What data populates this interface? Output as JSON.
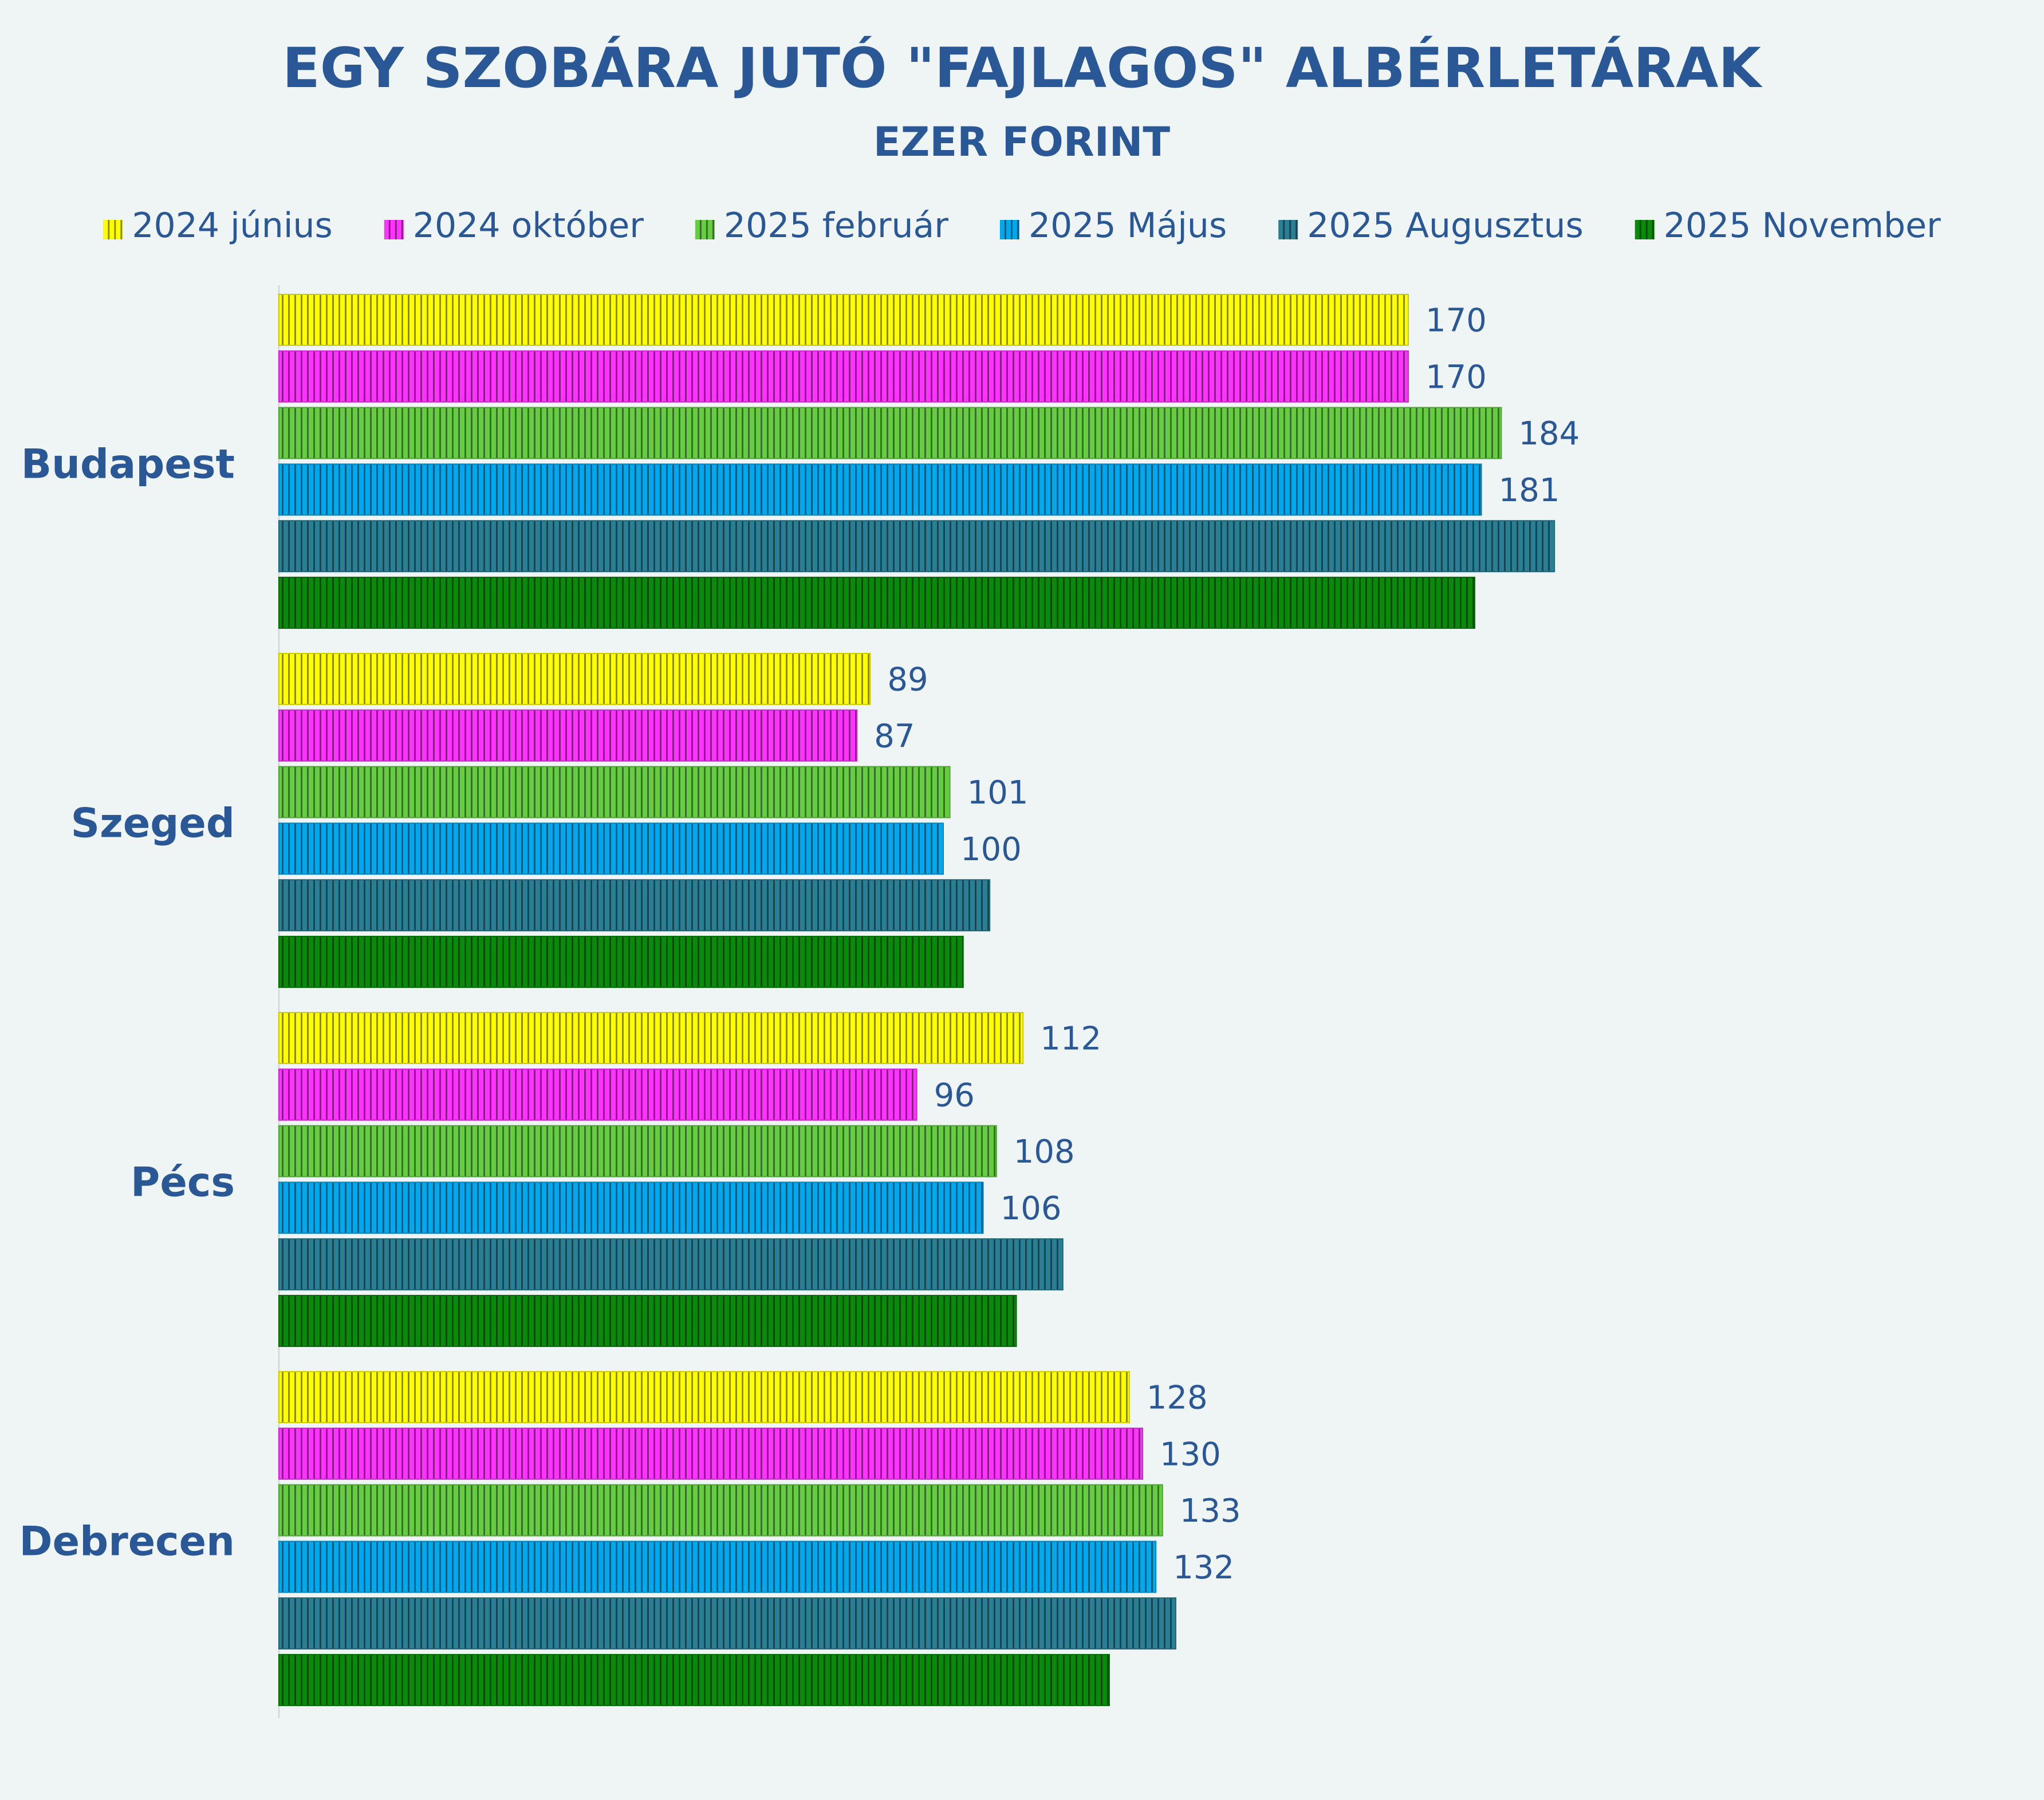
{
  "chart_data": {
    "type": "bar",
    "orientation": "horizontal",
    "title": "EGY SZOBÁRA JUTÓ \"FAJLAGOS\" ALBÉRLETÁRAK",
    "subtitle": "EZER FORINT",
    "legend_position": "top",
    "grid": false,
    "xlim": [
      0,
      240
    ],
    "categories": [
      "Budapest",
      "Szeged",
      "Pécs",
      "Debrecen"
    ],
    "series": [
      {
        "name": "2024 június",
        "color": "#ffff00",
        "values": [
          170,
          89,
          112,
          128
        ],
        "labels": [
          "170",
          "89",
          "112",
          "128"
        ]
      },
      {
        "name": "2024 október",
        "color": "#ff33ff",
        "values": [
          170,
          87,
          96,
          130
        ],
        "labels": [
          "170",
          "87",
          "96",
          "130"
        ]
      },
      {
        "name": "2025 február",
        "color": "#66cc44",
        "values": [
          184,
          101,
          108,
          133
        ],
        "labels": [
          "184",
          "101",
          "108",
          "133"
        ]
      },
      {
        "name": "2025 Május",
        "color": "#00a8ee",
        "values": [
          181,
          100,
          106,
          132
        ],
        "labels": [
          "181",
          "100",
          "106",
          "132"
        ]
      },
      {
        "name": "2025 Augusztus",
        "color": "#2a7f95",
        "values": [
          192,
          107,
          118,
          135
        ],
        "labels": [
          "",
          "",
          "",
          ""
        ]
      },
      {
        "name": "2025 November",
        "color": "#0a8a0a",
        "values": [
          180,
          103,
          111,
          125
        ],
        "labels": [
          "",
          "",
          "",
          ""
        ]
      }
    ]
  }
}
